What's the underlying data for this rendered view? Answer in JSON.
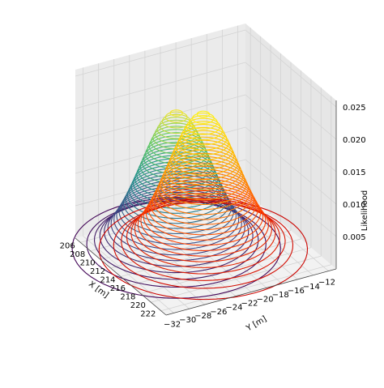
{
  "chart_data": {
    "type": "surface3d-contour",
    "title": "",
    "xlabel": "X [m]",
    "ylabel": "Y [m]",
    "zlabel": "Likelihood",
    "x_ticks": [
      "206",
      "208",
      "210",
      "212",
      "214",
      "216",
      "218",
      "220",
      "222"
    ],
    "y_ticks": [
      "−32",
      "−30",
      "−28",
      "−26",
      "−24",
      "−22",
      "−20",
      "−18",
      "−16",
      "−14",
      "−12"
    ],
    "z_ticks": [
      "0.005",
      "0.010",
      "0.015",
      "0.020",
      "0.025"
    ],
    "xlim": [
      205,
      223
    ],
    "ylim": [
      -33,
      -11
    ],
    "zlim": [
      0.0,
      0.026
    ],
    "grid": true,
    "series": [
      {
        "colormap": "viridis",
        "center_x": 212,
        "center_y": -24.5,
        "peak": 0.0215,
        "sigma": 2.6,
        "levels": 34
      },
      {
        "colormap": "autumn",
        "center_x": 213.5,
        "center_y": -22.0,
        "peak": 0.0215,
        "sigma": 2.6,
        "levels": 34
      }
    ]
  }
}
